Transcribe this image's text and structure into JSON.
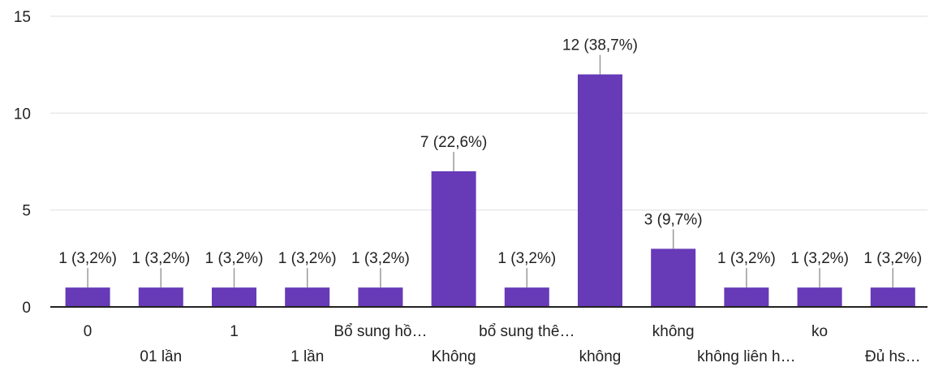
{
  "chart_data": {
    "type": "bar",
    "categories": [
      "0",
      "01 lần",
      "1",
      "1 lần",
      "Bổ sung hồ…",
      "Không",
      "bổ sung thê…",
      "không",
      "không",
      "không liên h…",
      "ko",
      "Đủ hs…"
    ],
    "values": [
      1,
      1,
      1,
      1,
      1,
      7,
      1,
      12,
      3,
      1,
      1,
      1
    ],
    "data_labels": [
      "1 (3,2%)",
      "1 (3,2%)",
      "1 (3,2%)",
      "1 (3,2%)",
      "1 (3,2%)",
      "7 (22,6%)",
      "1 (3,2%)",
      "12 (38,7%)",
      "3 (9,7%)",
      "1 (3,2%)",
      "1 (3,2%)",
      "1 (3,2%)"
    ],
    "y_ticks": [
      "0",
      "5",
      "10",
      "15"
    ],
    "ylim": [
      0,
      15
    ],
    "grid": true,
    "colors": {
      "bar": "#673ab7",
      "grid": "#e8e8e8",
      "axis": "#222222",
      "leader": "#999999"
    }
  }
}
